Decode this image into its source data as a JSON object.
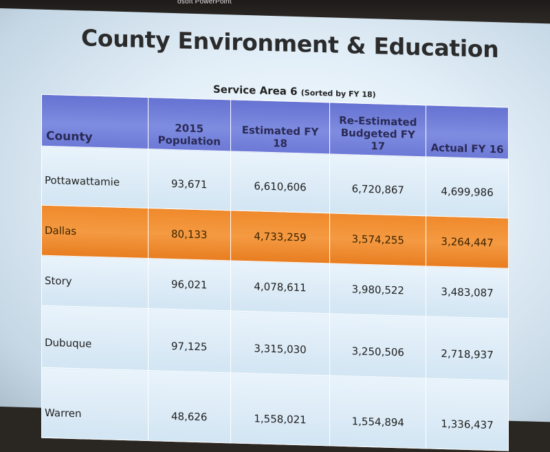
{
  "app": {
    "label": "osoft PowerPoint"
  },
  "slide": {
    "title": "County Environment & Education",
    "subtitle": "Service Area 6",
    "subtitle_note": "(Sorted by FY 18)"
  },
  "table": {
    "headers": {
      "county": "County",
      "pop_line1": "2015",
      "pop_line2": "Population",
      "est": "Estimated FY 18",
      "reest_line1": "Re-Estimated",
      "reest_line2": "Budgeted FY 17",
      "actual": "Actual FY 16"
    },
    "rows": [
      {
        "county": "Pottawattamie",
        "pop": "93,671",
        "est": "6,610,606",
        "reest": "6,720,867",
        "actual": "4,699,986"
      },
      {
        "county": "Dallas",
        "pop": "80,133",
        "est": "4,733,259",
        "reest": "3,574,255",
        "actual": "3,264,447"
      },
      {
        "county": "Story",
        "pop": "96,021",
        "est": "4,078,611",
        "reest": "3,980,522",
        "actual": "3,483,087"
      },
      {
        "county": "Dubuque",
        "pop": "97,125",
        "est": "3,315,030",
        "reest": "3,250,506",
        "actual": "2,718,937"
      },
      {
        "county": "Warren",
        "pop": "48,626",
        "est": "1,558,021",
        "reest": "1,554,894",
        "actual": "1,336,437"
      }
    ]
  },
  "colors": {
    "header_bg": "#7380dc",
    "highlight_row": "#f08a2c",
    "row_bg": "#dbeaf6",
    "title_text": "#2b2b2b"
  }
}
